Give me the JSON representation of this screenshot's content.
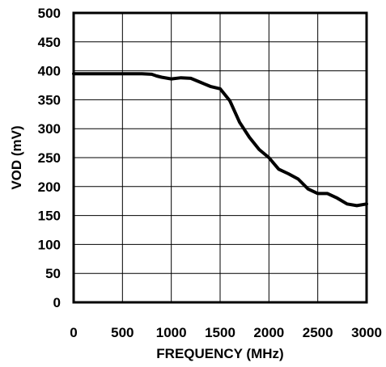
{
  "chart_data": {
    "type": "line",
    "xlabel": "FREQUENCY (MHz)",
    "ylabel": "VOD (mV)",
    "xlim": [
      0,
      3000
    ],
    "ylim": [
      0,
      500
    ],
    "x_ticks": [
      0,
      500,
      1000,
      1500,
      2000,
      2500,
      3000
    ],
    "y_ticks": [
      0,
      50,
      100,
      150,
      200,
      250,
      300,
      350,
      400,
      450,
      500
    ],
    "grid": true,
    "series": [
      {
        "color": "#000000",
        "x": [
          0,
          100,
          200,
          300,
          400,
          500,
          600,
          700,
          800,
          850,
          900,
          1000,
          1100,
          1200,
          1300,
          1400,
          1500,
          1600,
          1700,
          1800,
          1900,
          2000,
          2100,
          2200,
          2300,
          2400,
          2500,
          2600,
          2700,
          2800,
          2900,
          3000
        ],
        "y": [
          395,
          395,
          395,
          395,
          395,
          395,
          395,
          395,
          394,
          391,
          389,
          386,
          388,
          387,
          380,
          373,
          369,
          348,
          311,
          285,
          264,
          250,
          230,
          222,
          213,
          196,
          188,
          188,
          180,
          170,
          167,
          170
        ]
      }
    ]
  }
}
